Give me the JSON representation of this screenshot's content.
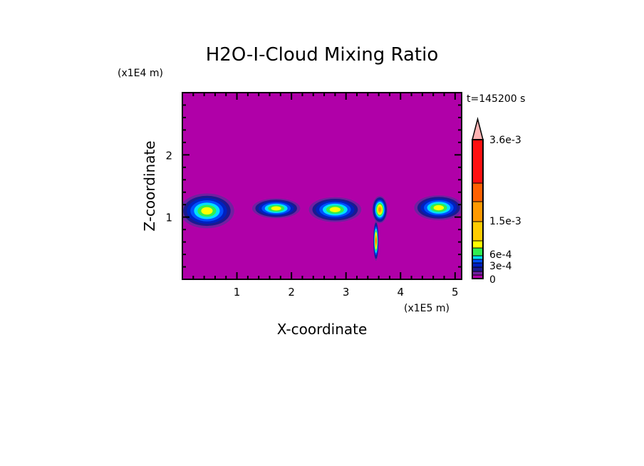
{
  "chart_data": {
    "type": "heatmap",
    "title": "H2O-I-Cloud Mixing Ratio",
    "xlabel": "X-coordinate",
    "ylabel": "Z-coordinate",
    "x_scale_label": "(x1E5 m)",
    "y_scale_label": "(x1E4 m)",
    "time_label": "t=145200 s",
    "xlim": [
      0,
      5.12
    ],
    "ylim": [
      0,
      3.0
    ],
    "x_ticks": [
      1,
      2,
      3,
      4,
      5
    ],
    "y_ticks": [
      1,
      2
    ],
    "background_color": "#b000a8",
    "colorbar": {
      "levels": [
        0,
        5e-05,
        0.0001,
        0.0002,
        0.0003,
        0.0004,
        0.0005,
        0.0006,
        0.0008,
        0.001,
        0.0015,
        0.002,
        0.0025,
        0.0036
      ],
      "colors": [
        "#b000a8",
        "#7020a0",
        "#1a1a90",
        "#0020c0",
        "#0050ff",
        "#00e0ff",
        "#30ee50",
        "#ffff00",
        "#ffcc00",
        "#ff9900",
        "#ff6000",
        "#ff1010",
        "#ff7f7f"
      ],
      "overflow_color": "#ffb3b3",
      "tick_labels": [
        {
          "value": 0,
          "label": "0"
        },
        {
          "value": 0.0003,
          "label": "3e-4"
        },
        {
          "value": 0.0006,
          "label": "6e-4"
        },
        {
          "value": 0.0015,
          "label": "1.5e-3"
        },
        {
          "value": 0.0036,
          "label": "3.6e-3"
        }
      ]
    },
    "clouds": [
      {
        "x": 0.45,
        "z": 1.1,
        "rx": 0.5,
        "rz": 0.28,
        "peak_level": 7
      },
      {
        "x": 1.72,
        "z": 1.14,
        "rx": 0.44,
        "rz": 0.16,
        "peak_level": 7
      },
      {
        "x": 2.8,
        "z": 1.12,
        "rx": 0.48,
        "rz": 0.2,
        "peak_level": 7
      },
      {
        "x": 3.62,
        "z": 1.12,
        "rx": 0.14,
        "rz": 0.22,
        "peak_level": 9
      },
      {
        "x": 3.55,
        "z": 0.62,
        "rx": 0.05,
        "rz": 0.32,
        "peak_level": 10
      },
      {
        "x": 4.7,
        "z": 1.15,
        "rx": 0.45,
        "rz": 0.2,
        "peak_level": 7
      }
    ]
  }
}
